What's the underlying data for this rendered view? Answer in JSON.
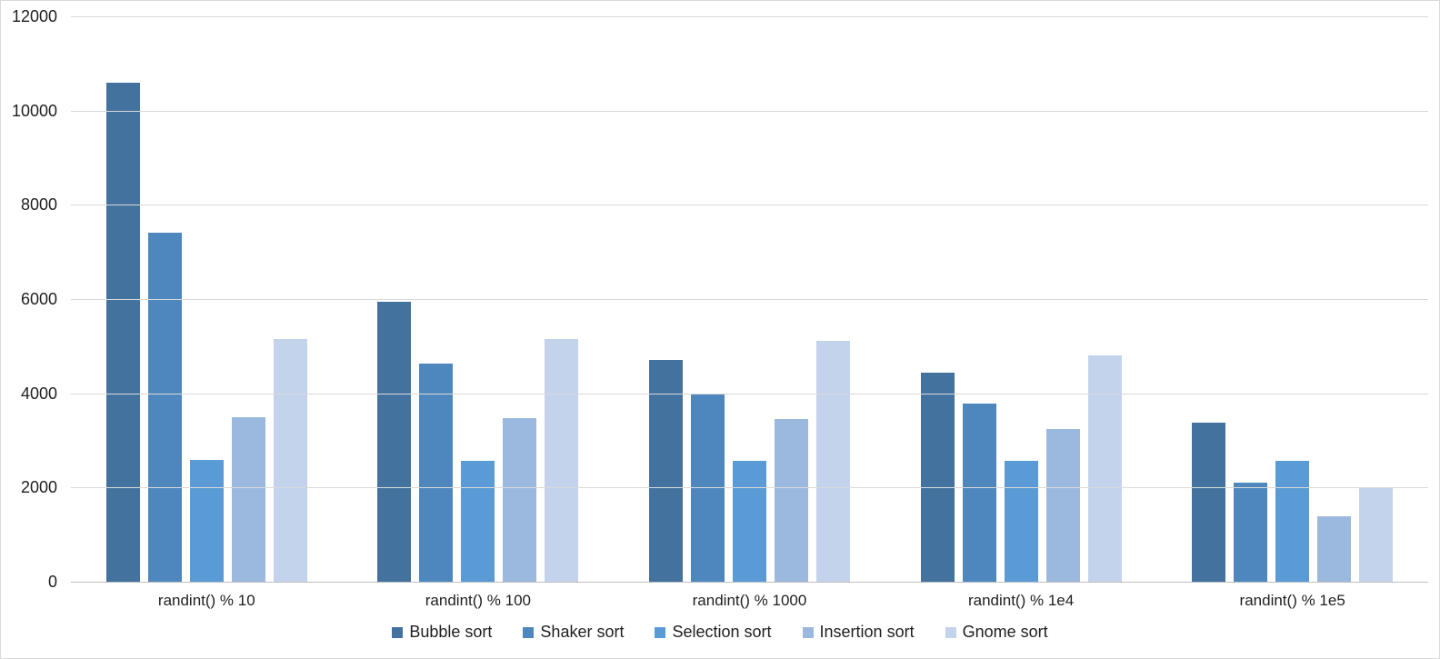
{
  "chart_data": {
    "type": "bar",
    "title": "",
    "xlabel": "",
    "ylabel": "",
    "categories": [
      "randint() % 10",
      "randint() % 100",
      "randint() % 1000",
      "randint() % 1e4",
      "randint() % 1e5"
    ],
    "series": [
      {
        "name": "Bubble sort",
        "color": "#44729E",
        "values": [
          10600,
          5940,
          4710,
          4440,
          3380
        ]
      },
      {
        "name": "Shaker sort",
        "color": "#4E87BE",
        "values": [
          7410,
          4640,
          3980,
          3780,
          2110
        ]
      },
      {
        "name": "Selection sort",
        "color": "#5B9BD5",
        "values": [
          2580,
          2570,
          2570,
          2570,
          2570
        ]
      },
      {
        "name": "Insertion sort",
        "color": "#9BB8DE",
        "values": [
          3500,
          3470,
          3450,
          3240,
          1380
        ]
      },
      {
        "name": "Gnome sort",
        "color": "#C4D3EC",
        "values": [
          5160,
          5160,
          5110,
          4810,
          2010
        ]
      }
    ],
    "ylim": [
      0,
      12000
    ],
    "ytick_step": 2000,
    "ytick_labels": [
      "0",
      "2000",
      "4000",
      "6000",
      "8000",
      "10000",
      "12000"
    ],
    "grid": true,
    "gridline_color": "#D9D9D9",
    "axis_line_color": "#BFBFBF",
    "text_color": "#1F1F1F",
    "background_color": "#FFFFFF",
    "legend_position": "bottom",
    "legend_labels": [
      "Bubble sort",
      "Shaker sort",
      "Selection sort",
      "Insertion sort",
      "Gnome sort"
    ]
  }
}
